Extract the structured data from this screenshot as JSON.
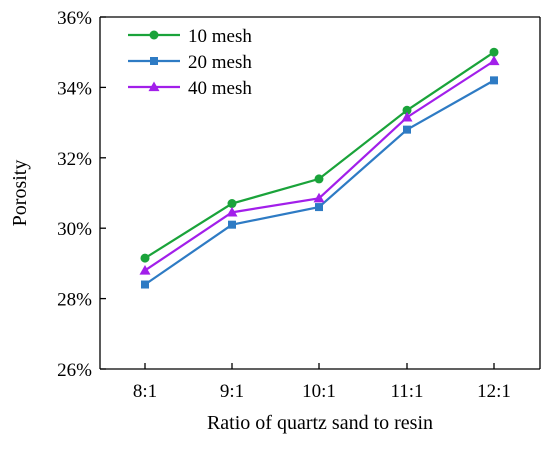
{
  "chart_data": {
    "type": "line",
    "title": "",
    "xlabel": "Ratio of quartz sand to resin",
    "ylabel": "Porosity",
    "categories": [
      "8:1",
      "9:1",
      "10:1",
      "11:1",
      "12:1"
    ],
    "ylim": [
      26,
      36
    ],
    "yticks": [
      26,
      28,
      30,
      32,
      34,
      36
    ],
    "ytick_labels": [
      "26%",
      "28%",
      "30%",
      "32%",
      "34%",
      "36%"
    ],
    "grid": false,
    "legend_position": "top-left",
    "series": [
      {
        "name": "10 mesh",
        "values": [
          29.15,
          30.7,
          31.4,
          33.35,
          35.0
        ],
        "color": "#1aa33a",
        "marker": "circle"
      },
      {
        "name": "20 mesh",
        "values": [
          28.4,
          30.1,
          30.6,
          32.8,
          34.2
        ],
        "color": "#2e7bc4",
        "marker": "square"
      },
      {
        "name": "40 mesh",
        "values": [
          28.8,
          30.45,
          30.85,
          33.15,
          34.75
        ],
        "color": "#a21fea",
        "marker": "triangle"
      }
    ]
  }
}
